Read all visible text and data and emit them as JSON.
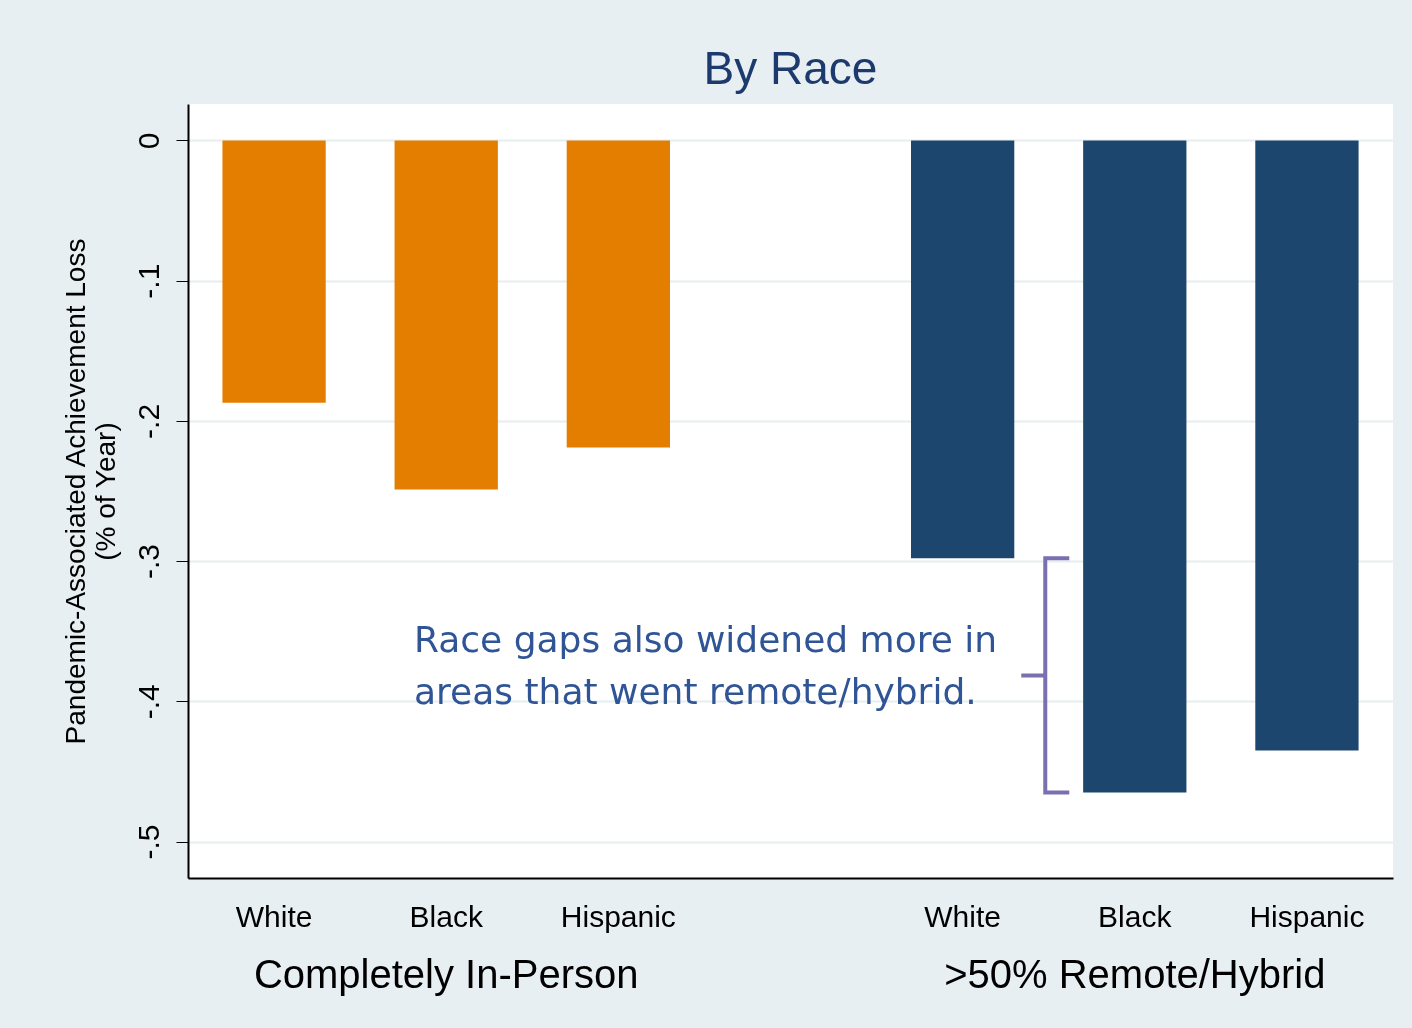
{
  "chart_data": {
    "type": "bar",
    "title": "By Race",
    "ylabel": "Pandemic-Associated Achievement Loss\n(% of Year)",
    "categories": [
      "White",
      "Black",
      "Hispanic",
      null,
      "White",
      "Black",
      "Hispanic"
    ],
    "values": [
      -0.187,
      -0.249,
      -0.219,
      null,
      -0.298,
      -0.465,
      -0.435
    ],
    "colors": [
      "#e37e00",
      "#e37e00",
      "#e37e00",
      null,
      "#1c466d",
      "#1c466d",
      "#1c466d"
    ],
    "ylim": [
      -0.526,
      0.026
    ],
    "yticks": [
      0,
      {
        "value": -0.1,
        "label": "-.1"
      },
      {
        "value": -0.2,
        "label": "-.2"
      },
      {
        "value": -0.3,
        "label": "-.3"
      },
      {
        "value": -0.4,
        "label": "-.4"
      },
      {
        "value": -0.5,
        "label": "-.5"
      }
    ],
    "grid": "y",
    "annotations": [
      "Completely In-Person",
      ">50% Remote/Hybrid",
      "Race gaps also widened more in areas that went remote/hybrid."
    ]
  }
}
